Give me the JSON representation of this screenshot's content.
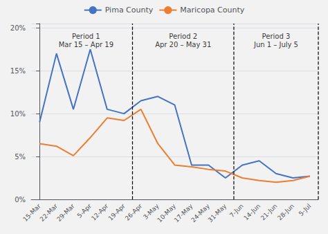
{
  "chart_data": {
    "type": "line",
    "categories": [
      "15-Mar",
      "22-Mar",
      "29-Mar",
      "5-Apr",
      "12-Apr",
      "19-Apr",
      "26-Apr",
      "3-May",
      "10-May",
      "17-May",
      "24-May",
      "31-May",
      "7-Jun",
      "14-Jun",
      "21-Jun",
      "28-Jun",
      "5-Jul"
    ],
    "series": [
      {
        "name": "Pima County",
        "color": "#4472C4",
        "values": [
          0.09,
          0.17,
          0.105,
          0.175,
          0.105,
          0.1,
          0.115,
          0.12,
          0.11,
          0.04,
          0.04,
          0.025,
          0.04,
          0.045,
          0.03,
          0.025,
          0.027
        ]
      },
      {
        "name": "Maricopa County",
        "color": "#ED7D31",
        "values": [
          0.065,
          0.062,
          0.051,
          0.072,
          0.095,
          0.092,
          0.105,
          0.065,
          0.04,
          0.038,
          0.035,
          0.033,
          0.025,
          0.022,
          0.02,
          0.022,
          0.027
        ]
      }
    ],
    "vlines": [
      5.5,
      11.5,
      16.5
    ],
    "annotations": [
      {
        "text": "Period 1\nMar 15 – Apr 19",
        "x": 2.75,
        "y": 0.195
      },
      {
        "text": "Period 2\nApr 20 – May 31",
        "x": 8.5,
        "y": 0.195
      },
      {
        "text": "Period 3\nJun 1 – July 5",
        "x": 14.0,
        "y": 0.195
      }
    ],
    "ylim": [
      0,
      0.205
    ],
    "yticks": [
      {
        "value": 0.0,
        "label": "0%"
      },
      {
        "value": 0.05,
        "label": "5%"
      },
      {
        "value": 0.1,
        "label": "10%"
      },
      {
        "value": 0.15,
        "label": "15%"
      },
      {
        "value": 0.2,
        "label": "20%"
      }
    ],
    "grid": true,
    "legend": "top"
  }
}
